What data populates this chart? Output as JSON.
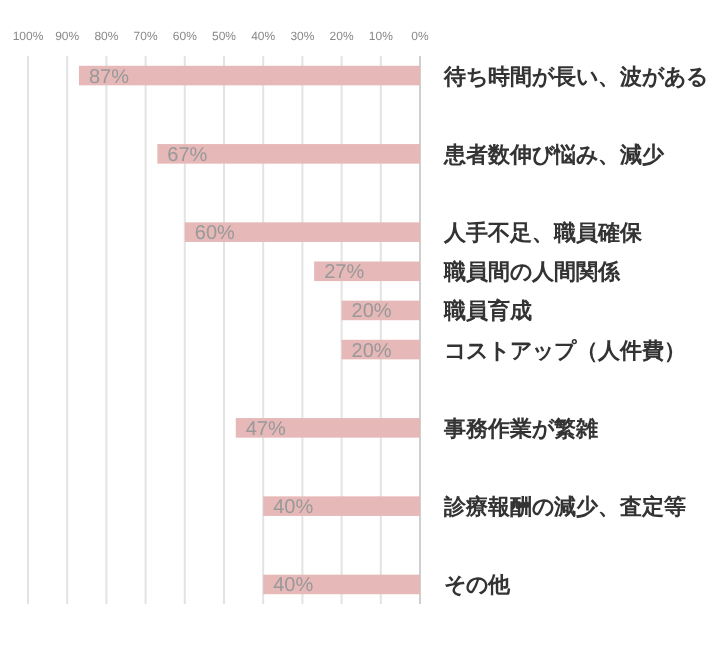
{
  "chart_data": {
    "type": "bar",
    "orientation": "horizontal",
    "categories": [
      "待ち時間が長い、波がある",
      null,
      "患者数伸び悩み、減少",
      null,
      "人手不足、職員確保",
      "職員間の人間関係",
      "職員育成",
      "コストアップ（人件費）",
      null,
      "事務作業が繁雑",
      null,
      "診療報酬の減少、査定等",
      null,
      "その他"
    ],
    "values": [
      87,
      null,
      67,
      null,
      60,
      27,
      20,
      20,
      null,
      47,
      null,
      40,
      null,
      40
    ],
    "value_labels": [
      "87%",
      null,
      "67%",
      null,
      "60%",
      "27%",
      "20%",
      "20%",
      null,
      "47%",
      null,
      "40%",
      null,
      "40%"
    ],
    "color": "#e6b8b8",
    "xlim": [
      100,
      0
    ],
    "xticks": [
      {
        "value": 100,
        "label": "100%"
      },
      {
        "value": 90,
        "label": "90%"
      },
      {
        "value": 80,
        "label": "80%"
      },
      {
        "value": 70,
        "label": "70%"
      },
      {
        "value": 60,
        "label": "60%"
      },
      {
        "value": 50,
        "label": "50%"
      },
      {
        "value": 40,
        "label": "40%"
      },
      {
        "value": 30,
        "label": "30%"
      },
      {
        "value": 20,
        "label": "20%"
      },
      {
        "value": 10,
        "label": "10%"
      },
      {
        "value": 0,
        "label": "0%"
      }
    ],
    "grid": "x"
  }
}
